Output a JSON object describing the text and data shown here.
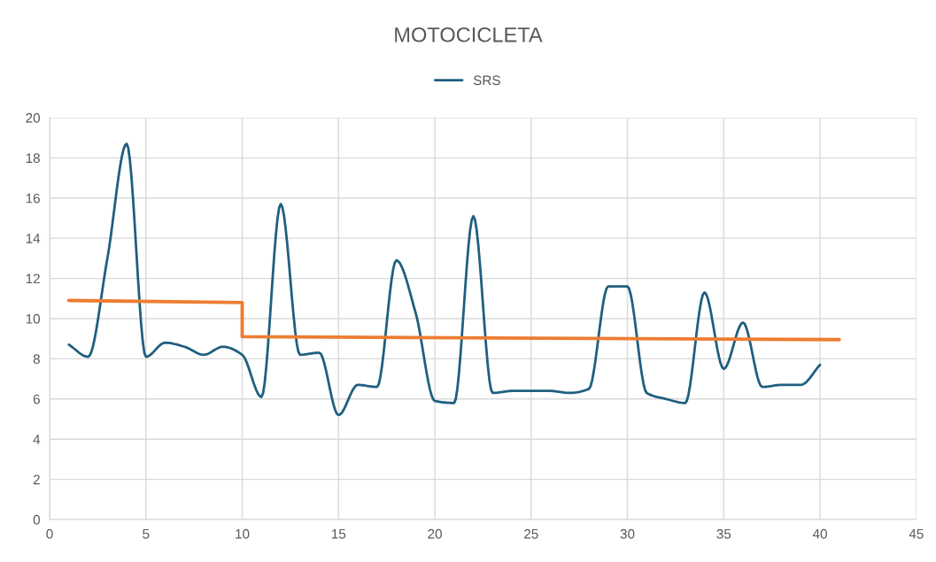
{
  "chart_data": {
    "type": "line",
    "title": "MOTOCICLETA",
    "series": [
      {
        "name": "SRS",
        "color": "#1f5f7f",
        "x": [
          1,
          2,
          3,
          4,
          5,
          6,
          7,
          8,
          9,
          10,
          11,
          12,
          13,
          14,
          15,
          16,
          17,
          18,
          19,
          20,
          21,
          22,
          23,
          24,
          25,
          26,
          27,
          28,
          29,
          30,
          31,
          32,
          33,
          34,
          35,
          36,
          37,
          38,
          39,
          40
        ],
        "values": [
          8.7,
          8.1,
          13.0,
          18.7,
          8.1,
          8.8,
          8.6,
          8.2,
          8.6,
          8.2,
          6.1,
          15.7,
          8.2,
          8.3,
          5.2,
          6.7,
          6.6,
          12.9,
          10.3,
          5.9,
          5.8,
          15.1,
          6.3,
          6.4,
          6.4,
          6.4,
          6.3,
          6.5,
          11.6,
          11.6,
          6.3,
          6.0,
          5.8,
          11.3,
          7.5,
          9.8,
          6.6,
          6.7,
          6.7,
          7.7
        ]
      },
      {
        "color": "#ed7d31",
        "x": [
          1,
          10,
          10,
          41
        ],
        "values": [
          10.9,
          10.8,
          9.1,
          8.95
        ]
      }
    ],
    "xlim": [
      0,
      45
    ],
    "xticks": [
      0,
      5,
      10,
      15,
      20,
      25,
      30,
      35,
      40,
      45
    ],
    "ylim": [
      0,
      20
    ],
    "yticks": [
      0,
      2,
      4,
      6,
      8,
      10,
      12,
      14,
      16,
      18,
      20
    ],
    "grid": true,
    "legend": "top",
    "line_style": "solid",
    "marker": "none"
  }
}
